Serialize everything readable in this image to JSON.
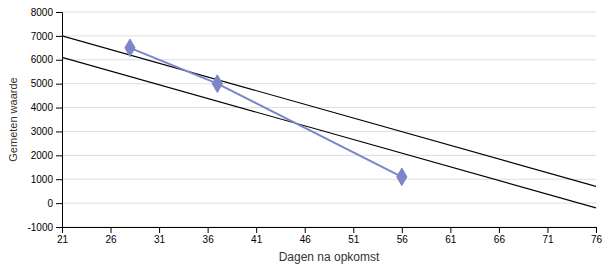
{
  "chart_data": {
    "type": "line",
    "xlabel": "Dagen na opkomst",
    "ylabel": "Gemeten waarde",
    "xlim": [
      21,
      76
    ],
    "ylim": [
      -1000,
      8000
    ],
    "xticks": [
      21,
      26,
      31,
      36,
      41,
      46,
      51,
      56,
      61,
      66,
      71,
      76
    ],
    "yticks": [
      -1000,
      0,
      1000,
      2000,
      3000,
      4000,
      5000,
      6000,
      7000,
      8000
    ],
    "grid": true,
    "series": [
      {
        "x": [
          28,
          37,
          56
        ],
        "values": [
          6500,
          5000,
          1100
        ],
        "color": "#7B86C8",
        "marker": "diamond"
      },
      {
        "x": [
          21,
          76
        ],
        "values": [
          7000,
          700
        ],
        "color": "#000000"
      },
      {
        "x": [
          21,
          76
        ],
        "values": [
          6100,
          -200
        ],
        "color": "#000000"
      }
    ]
  }
}
